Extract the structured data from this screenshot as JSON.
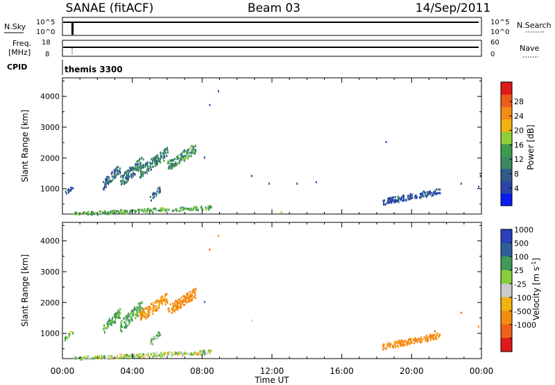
{
  "header": {
    "station": "SANAE (fitACF)",
    "beam": "Beam 03",
    "date": "14/Sep/2011"
  },
  "noise_panel": {
    "left_label": "N.Sky",
    "left_ticks": [
      "10^5",
      "10^0"
    ],
    "right_label": "N.Search",
    "right_ticks": [
      "10^5",
      "10^0"
    ]
  },
  "freq_panel": {
    "left_label_1": "Freq.",
    "left_label_2": "[MHz]",
    "left_ticks": [
      "18",
      "8"
    ],
    "right_label": "Nave",
    "right_ticks": [
      "60",
      "0"
    ]
  },
  "cpid_panel": {
    "label": "CPID",
    "mode": "themis 3300"
  },
  "colors": {
    "power_scale": [
      "#0a1cf0",
      "#2a44a8",
      "#2f5a8a",
      "#3b8a64",
      "#3f9b4f",
      "#8fcf3a",
      "#f2b20d",
      "#f58a10",
      "#f05a1a",
      "#e01818"
    ],
    "velocity_scale": [
      "#2a3fb8",
      "#2f5f9a",
      "#3f9b5a",
      "#86cf3a",
      "#cccccc",
      "#f2b20d",
      "#f58a10",
      "#f0601a",
      "#e01818"
    ]
  },
  "chart_data": [
    {
      "type": "scatter",
      "title": "Power",
      "xlabel": "Time UT",
      "ylabel": "Slant Range [km]",
      "xticks": [
        "00:00",
        "04:00",
        "08:00",
        "12:00",
        "16:00",
        "20:00",
        "00:00"
      ],
      "xlim": [
        0,
        24
      ],
      "ylim": [
        180,
        4600
      ],
      "yticks": [
        1000,
        2000,
        3000,
        4000
      ],
      "colorbar": {
        "label": "Power [dB]",
        "ticks": [
          "28",
          "24",
          "20",
          "16",
          "12",
          "8",
          "4"
        ],
        "range": [
          0,
          30
        ]
      },
      "clusters": [
        {
          "t": [
            2.3,
            3.3
          ],
          "r": [
            1150,
            1700
          ],
          "value": 8
        },
        {
          "t": [
            3.3,
            4.6
          ],
          "r": [
            1250,
            1950
          ],
          "value": 9
        },
        {
          "t": [
            4.4,
            6.0
          ],
          "r": [
            1550,
            2200
          ],
          "value": 10
        },
        {
          "t": [
            6.0,
            7.6
          ],
          "r": [
            1750,
            2350
          ],
          "value": 12
        },
        {
          "t": [
            5.0,
            5.6
          ],
          "r": [
            700,
            1050
          ],
          "value": 7
        },
        {
          "t": [
            0.1,
            0.6
          ],
          "r": [
            850,
            1100
          ],
          "value": 6
        },
        {
          "t": [
            18.3,
            21.6
          ],
          "r": [
            600,
            950
          ],
          "value": 6
        },
        {
          "t": [
            0.5,
            8.5
          ],
          "r": [
            200,
            420
          ],
          "value": 14
        }
      ],
      "isolated": [
        {
          "t": 8.4,
          "r": 3750,
          "value": 4
        },
        {
          "t": 8.9,
          "r": 4200,
          "value": 4
        },
        {
          "t": 8.1,
          "r": 2050,
          "value": 5
        },
        {
          "t": 18.5,
          "r": 2550,
          "value": 4
        },
        {
          "t": 10.8,
          "r": 1450,
          "value": 4
        },
        {
          "t": 11.8,
          "r": 1200,
          "value": 4
        },
        {
          "t": 13.4,
          "r": 1200,
          "value": 4
        },
        {
          "t": 14.5,
          "r": 1250,
          "value": 4
        },
        {
          "t": 22.8,
          "r": 1200,
          "value": 4
        },
        {
          "t": 23.8,
          "r": 1100,
          "value": 5
        },
        {
          "t": 23.9,
          "r": 1450,
          "value": 5
        },
        {
          "t": 12.5,
          "r": 270,
          "value": 20
        }
      ]
    },
    {
      "type": "scatter",
      "title": "Velocity",
      "xlabel": "Time UT",
      "ylabel": "Slant Range [km]",
      "xticks": [
        "00:00",
        "04:00",
        "08:00",
        "12:00",
        "16:00",
        "20:00",
        "00:00"
      ],
      "xlim": [
        0,
        24
      ],
      "ylim": [
        180,
        4600
      ],
      "yticks": [
        1000,
        2000,
        3000,
        4000
      ],
      "colorbar": {
        "label": "Velocity [m s^-1]",
        "ticks": [
          "1000",
          "500",
          "100",
          "25",
          "-25",
          "-100",
          "-500",
          "-1000"
        ]
      },
      "clusters": [
        {
          "t": [
            2.3,
            3.3
          ],
          "r": [
            1150,
            1700
          ],
          "value": 150
        },
        {
          "t": [
            3.3,
            4.6
          ],
          "r": [
            1250,
            1950
          ],
          "value": 120
        },
        {
          "t": [
            4.4,
            6.0
          ],
          "r": [
            1550,
            2200
          ],
          "value": -150
        },
        {
          "t": [
            6.0,
            7.6
          ],
          "r": [
            1750,
            2350
          ],
          "value": -250
        },
        {
          "t": [
            5.0,
            5.6
          ],
          "r": [
            700,
            1050
          ],
          "value": 100
        },
        {
          "t": [
            0.1,
            0.6
          ],
          "r": [
            850,
            1100
          ],
          "value": 60
        },
        {
          "t": [
            18.3,
            21.6
          ],
          "r": [
            600,
            950
          ],
          "value": -200
        },
        {
          "t": [
            0.5,
            8.5
          ],
          "r": [
            200,
            420
          ],
          "value": 40
        }
      ],
      "isolated": [
        {
          "t": 8.4,
          "r": 3750,
          "value": -800
        },
        {
          "t": 8.9,
          "r": 4200,
          "value": -120
        },
        {
          "t": 8.1,
          "r": 2050,
          "value": 500
        },
        {
          "t": 22.8,
          "r": 1700,
          "value": -900
        },
        {
          "t": 21.3,
          "r": 1100,
          "value": -900
        },
        {
          "t": 23.8,
          "r": 1250,
          "value": -300
        },
        {
          "t": 10.8,
          "r": 1450,
          "value": 20
        }
      ]
    }
  ]
}
